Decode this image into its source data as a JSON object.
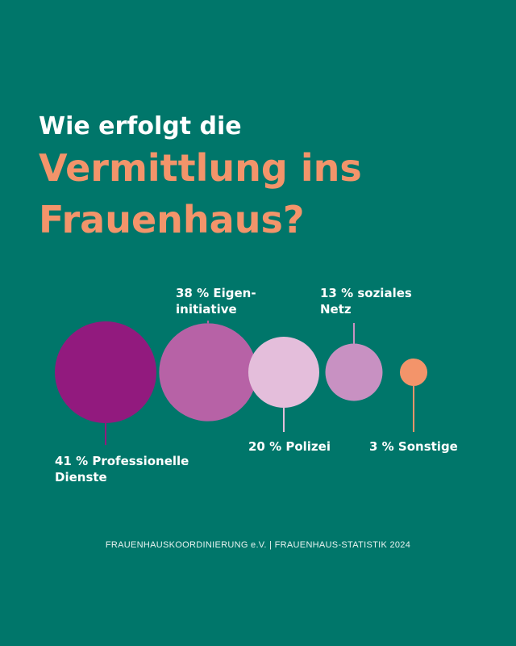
{
  "title": {
    "line1": "Wie erfolgt die",
    "line2a": "Vermittlung ins",
    "line2b": "Frauenhaus?"
  },
  "colors": {
    "background": "#00766a",
    "accent": "#f3946a"
  },
  "chart_data": {
    "type": "bubble",
    "unit": "%",
    "items": [
      {
        "label": "41 % Professionelle",
        "label2": "Dienste",
        "value": 41,
        "color": "#921a7e"
      },
      {
        "label": "38 % Eigen-",
        "label2": "initiative",
        "value": 38,
        "color": "#b762a6"
      },
      {
        "label": "20 % Polizei",
        "label2": "",
        "value": 20,
        "color": "#e4bedb"
      },
      {
        "label": "13 % soziales",
        "label2": "Netz",
        "value": 13,
        "color": "#c891c2"
      },
      {
        "label": "3 % Sonstige",
        "label2": "",
        "value": 3,
        "color": "#f3946a"
      }
    ]
  },
  "source": "FRAUENHAUSKOORDINIERUNG e.V. | FRAUENHAUS-STATISTIK 2024"
}
